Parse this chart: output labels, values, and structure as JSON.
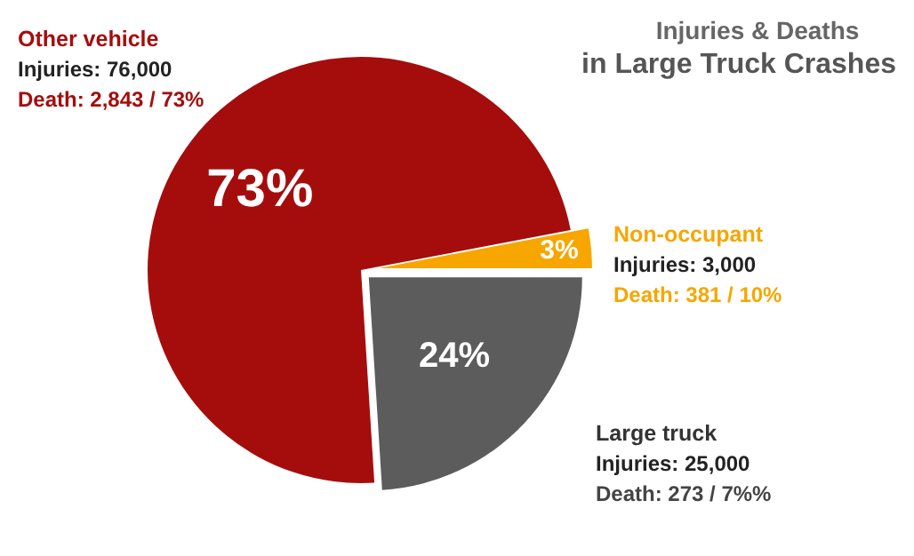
{
  "chart_data": {
    "type": "pie",
    "title": "Injuries & Deaths",
    "subtitle": "in Large Truck Crashes",
    "categories": [
      "Large truck",
      "Other vehicle",
      "Non-occupant"
    ],
    "values": [
      24,
      73,
      3
    ],
    "colors": [
      "#5c5c5c",
      "#a50d0d",
      "#f7a600"
    ],
    "value_labels": [
      "24%",
      "73%",
      "3%"
    ],
    "annotations": [
      "Injuries: 25,000",
      "Death: 273 / 7%%",
      "Injuries: 76,000",
      "Death: 2,843 / 73%",
      "Injuries: 3,000",
      "Death: 381 / 10%"
    ],
    "data_labels": false
  }
}
